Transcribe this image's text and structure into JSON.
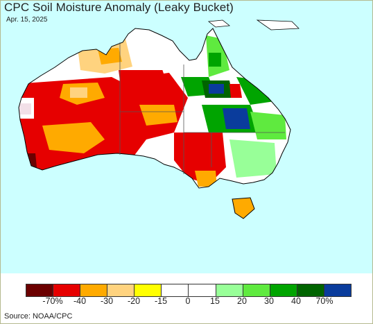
{
  "header": {
    "title": "CPC Soil Moisture Anomaly (Leaky Bucket)",
    "date": "Apr. 15, 2025"
  },
  "legend": {
    "colors": [
      "#6b0000",
      "#e60000",
      "#ffaa00",
      "#ffd37f",
      "#ffff00",
      "#ffffff",
      "#ffffff",
      "#98ff98",
      "#5fea3f",
      "#00a400",
      "#006400",
      "#0a3c9c"
    ],
    "labels": [
      "-70%",
      "-40",
      "-30",
      "-20",
      "-15",
      "0",
      "15",
      "20",
      "30",
      "40",
      "70%"
    ]
  },
  "footer": {
    "source": "Source: NOAA/CPC"
  }
}
